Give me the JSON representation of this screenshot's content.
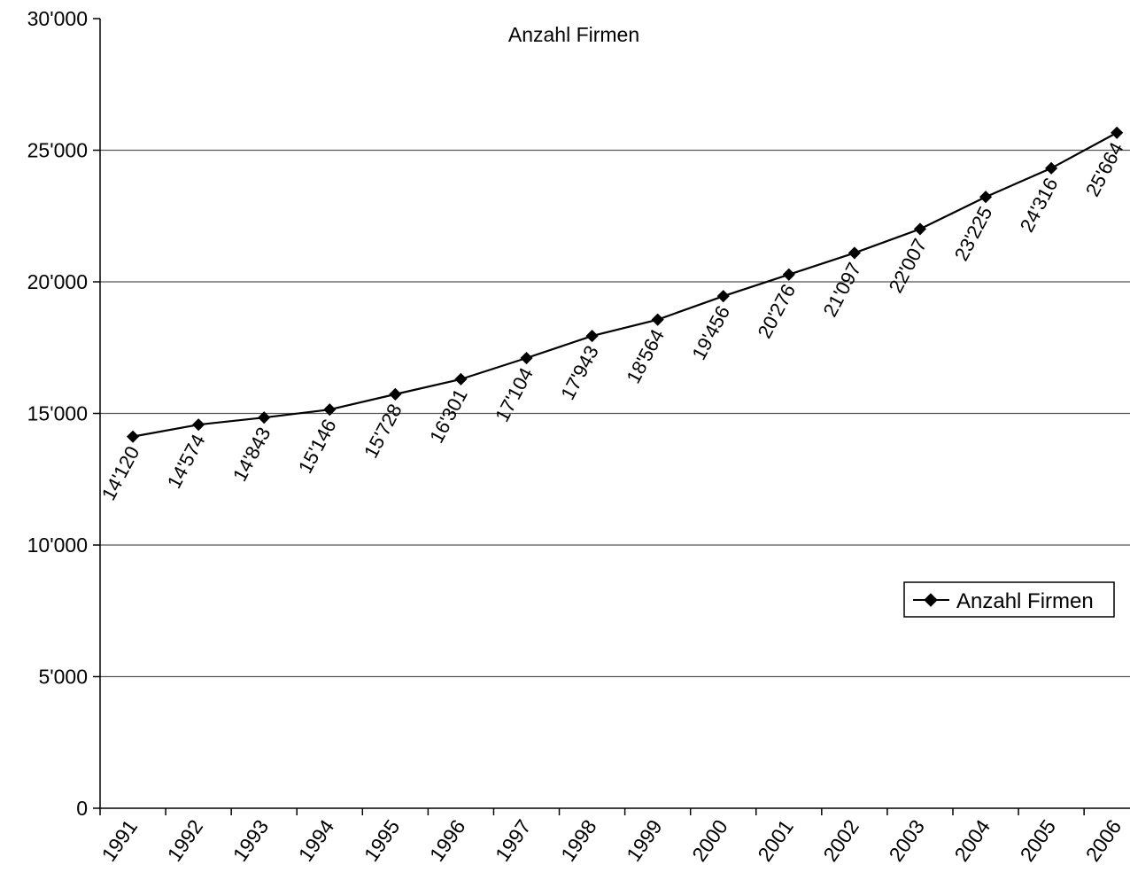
{
  "chart_data": {
    "type": "line",
    "title": "Anzahl Firmen",
    "xlabel": "",
    "ylabel": "",
    "categories": [
      "1991",
      "1992",
      "1993",
      "1994",
      "1995",
      "1996",
      "1997",
      "1998",
      "1999",
      "2000",
      "2001",
      "2002",
      "2003",
      "2004",
      "2005",
      "2006"
    ],
    "series": [
      {
        "name": "Anzahl Firmen",
        "values": [
          14120,
          14574,
          14843,
          15146,
          15728,
          16301,
          17104,
          17943,
          18564,
          19456,
          20276,
          21097,
          22007,
          23225,
          24316,
          25664
        ],
        "data_labels": [
          "14'120",
          "14'574",
          "14'843",
          "15'146",
          "15'728",
          "16'301",
          "17'104",
          "17'943",
          "18'564",
          "19'456",
          "20'276",
          "21'097",
          "22'007",
          "23'225",
          "24'316",
          "25'664"
        ]
      }
    ],
    "ylim": [
      0,
      30000
    ],
    "yticks": [
      0,
      5000,
      10000,
      15000,
      20000,
      25000,
      30000
    ],
    "ytick_labels": [
      "0",
      "5'000",
      "10'000",
      "15'000",
      "20'000",
      "25'000",
      "30'000"
    ],
    "grid": true,
    "legend": {
      "entries": [
        "Anzahl Firmen"
      ],
      "placement": "right"
    },
    "colors": {
      "line": "#000000",
      "grid": "#555555",
      "axis": "#000000"
    }
  }
}
